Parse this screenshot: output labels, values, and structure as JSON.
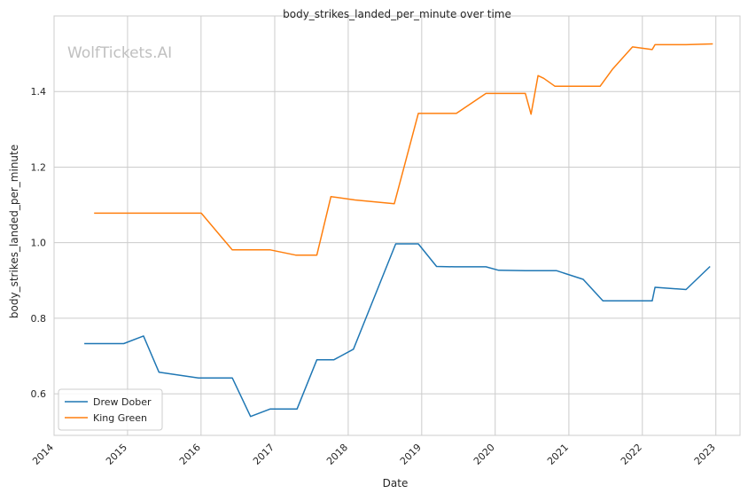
{
  "chart_data": {
    "type": "line",
    "title": "body_strikes_landed_per_minute over time",
    "xlabel": "Date",
    "ylabel": "body_strikes_landed_per_minute",
    "watermark": "WolfTickets.AI",
    "x_ticks": [
      "2014",
      "2015",
      "2016",
      "2017",
      "2018",
      "2019",
      "2020",
      "2021",
      "2022",
      "2023"
    ],
    "y_ticks": [
      "0.6",
      "0.8",
      "1.0",
      "1.2",
      "1.4"
    ],
    "xlim": [
      "2014-01-01",
      "2023-05-01"
    ],
    "ylim": [
      0.49,
      1.6
    ],
    "grid": true,
    "legend_position": "lower-left",
    "series": [
      {
        "name": "Drew Dober",
        "color": "#1f77b4",
        "points": [
          [
            "2014-05-31",
            0.733
          ],
          [
            "2014-12-13",
            0.733
          ],
          [
            "2015-03-21",
            0.753
          ],
          [
            "2015-06-06",
            0.657
          ],
          [
            "2015-12-19",
            0.642
          ],
          [
            "2016-06-04",
            0.642
          ],
          [
            "2016-09-03",
            0.54
          ],
          [
            "2016-12-10",
            0.56
          ],
          [
            "2017-04-22",
            0.56
          ],
          [
            "2017-07-29",
            0.69
          ],
          [
            "2017-10-21",
            0.69
          ],
          [
            "2018-01-27",
            0.718
          ],
          [
            "2018-08-25",
            0.997
          ],
          [
            "2018-12-15",
            0.997
          ],
          [
            "2019-03-16",
            0.937
          ],
          [
            "2019-06-15",
            0.936
          ],
          [
            "2019-11-16",
            0.936
          ],
          [
            "2020-01-18",
            0.927
          ],
          [
            "2020-05-30",
            0.926
          ],
          [
            "2020-10-31",
            0.926
          ],
          [
            "2021-03-13",
            0.903
          ],
          [
            "2021-06-19",
            0.846
          ],
          [
            "2022-02-19",
            0.846
          ],
          [
            "2022-03-05",
            0.882
          ],
          [
            "2022-08-06",
            0.876
          ],
          [
            "2022-12-03",
            0.937
          ]
        ]
      },
      {
        "name": "King Green",
        "color": "#ff7f0e",
        "points": [
          [
            "2014-07-19",
            1.078
          ],
          [
            "2016-01-02",
            1.078
          ],
          [
            "2016-06-04",
            0.981
          ],
          [
            "2016-12-10",
            0.981
          ],
          [
            "2017-04-15",
            0.967
          ],
          [
            "2017-07-29",
            0.967
          ],
          [
            "2017-10-07",
            1.122
          ],
          [
            "2018-02-03",
            1.113
          ],
          [
            "2018-08-18",
            1.103
          ],
          [
            "2018-12-15",
            1.342
          ],
          [
            "2019-06-22",
            1.342
          ],
          [
            "2019-11-16",
            1.395
          ],
          [
            "2020-05-30",
            1.395
          ],
          [
            "2020-06-27",
            1.34
          ],
          [
            "2020-08-01",
            1.442
          ],
          [
            "2020-08-29",
            1.435
          ],
          [
            "2020-10-24",
            1.414
          ],
          [
            "2021-06-05",
            1.414
          ],
          [
            "2021-08-07",
            1.46
          ],
          [
            "2021-11-13",
            1.518
          ],
          [
            "2022-02-19",
            1.511
          ],
          [
            "2022-03-05",
            1.524
          ],
          [
            "2022-08-06",
            1.524
          ],
          [
            "2022-12-17",
            1.526
          ]
        ]
      }
    ]
  }
}
